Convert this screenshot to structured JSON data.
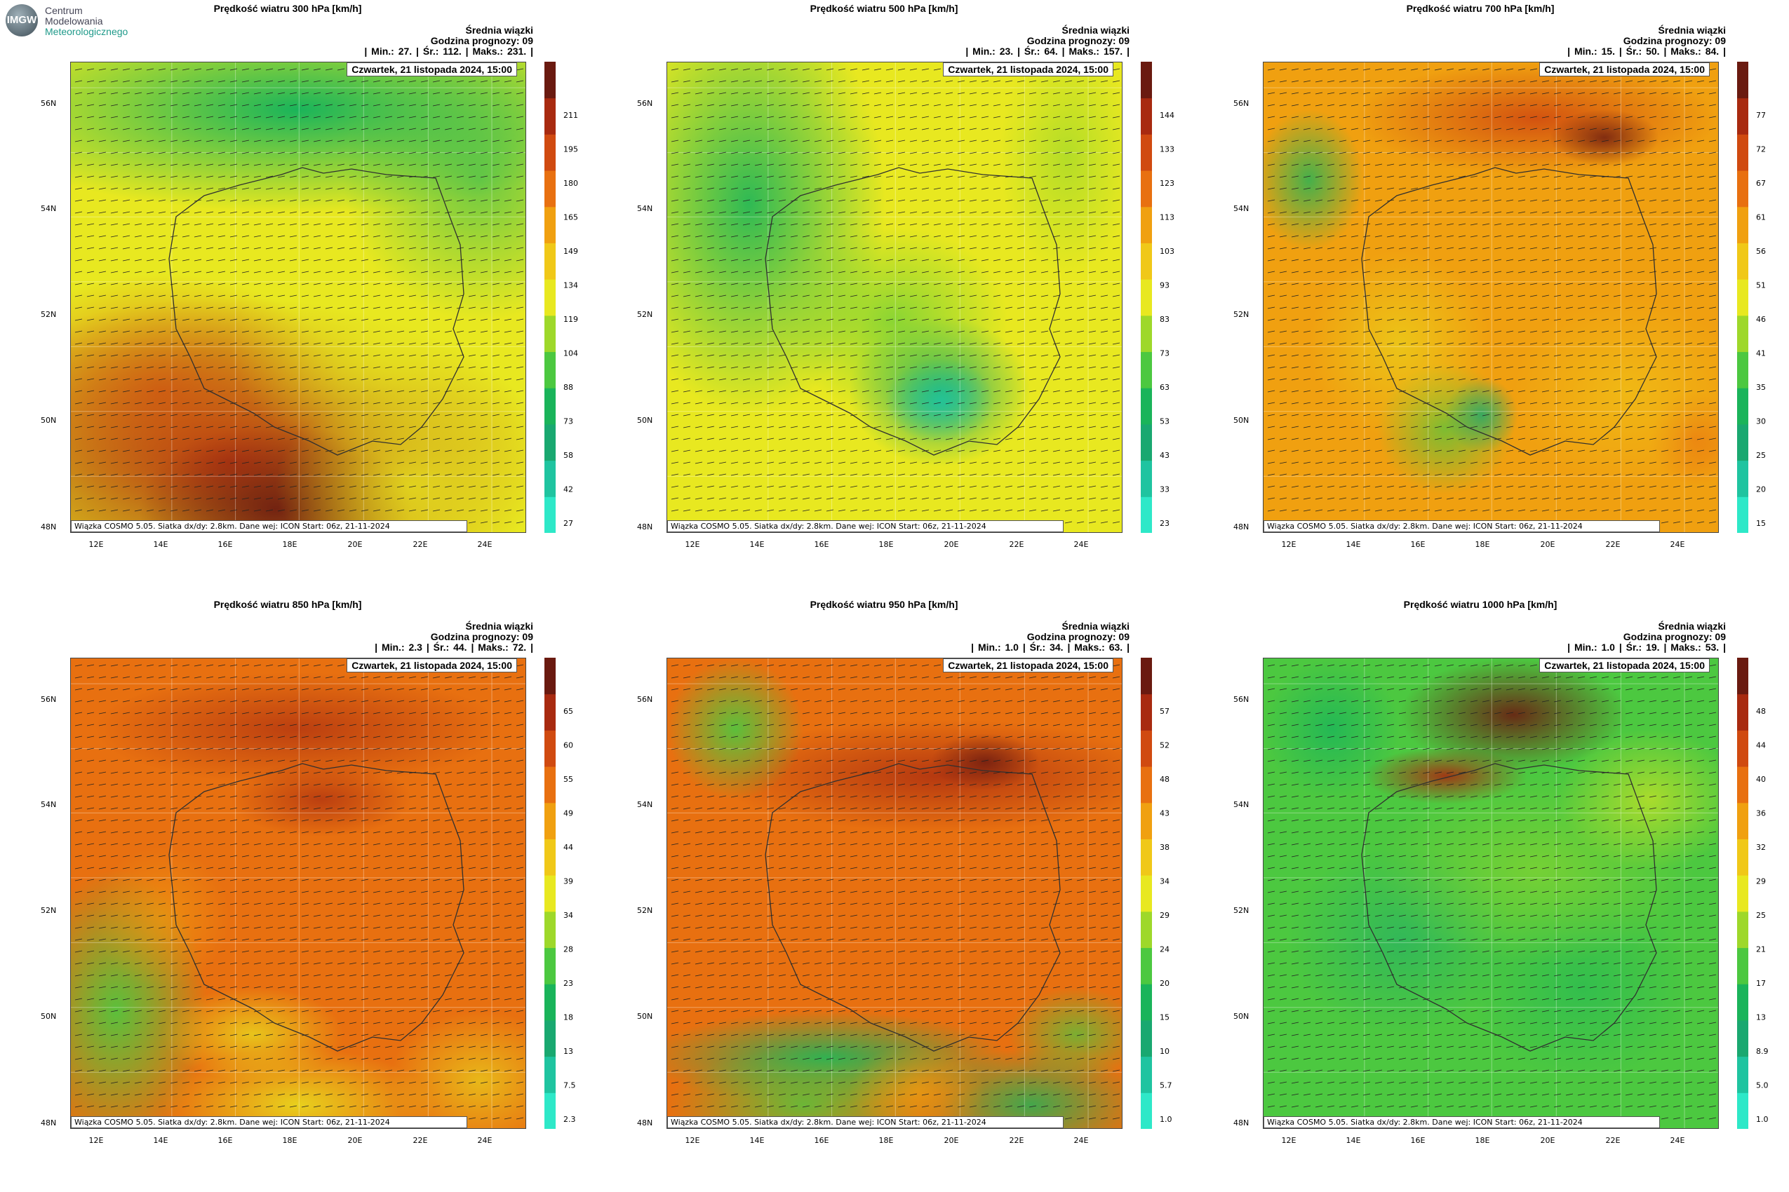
{
  "logo": {
    "badge": "IMGW",
    "line1": "Centrum",
    "line2": "Modelowania",
    "line3": "Meteorologicznego"
  },
  "common": {
    "header_title": "Średnia wiązki",
    "forecast_hour": "Godzina prognozy: 09",
    "date": "Czwartek, 21 listopada 2024, 15:00",
    "footer": "Wiązka  COSMO 5.05. Siatka dx/dy: 2.8km. Dane wej: ICON Start: 06z, 21-11-2024",
    "lat_labels": [
      "56N",
      "54N",
      "52N",
      "50N",
      "48N"
    ],
    "lon_labels": [
      "12E",
      "14E",
      "16E",
      "18E",
      "20E",
      "22E",
      "24E"
    ]
  },
  "panels": [
    {
      "title": "Prędkość wiatru 300 hPa [km/h]",
      "stats": "| Min.:    27. | Śr.:    112. | Maks.:    231. |",
      "colorbar": [
        "211",
        "195",
        "180",
        "165",
        "149",
        "134",
        "119",
        "104",
        "88",
        "73",
        "58",
        "42",
        "27"
      ],
      "scheme": "p300"
    },
    {
      "title": "Prędkość wiatru 500 hPa [km/h]",
      "stats": "| Min.:    23. | Śr.:    64. | Maks.:    157. |",
      "colorbar": [
        "144",
        "133",
        "123",
        "113",
        "103",
        "93",
        "83",
        "73",
        "63",
        "53",
        "43",
        "33",
        "23"
      ],
      "scheme": "p500"
    },
    {
      "title": "Prędkość wiatru 700 hPa [km/h]",
      "stats": "| Min.:    15. | Śr.:    50. | Maks.:    84. |",
      "colorbar": [
        "77",
        "72",
        "67",
        "61",
        "56",
        "51",
        "46",
        "41",
        "35",
        "30",
        "25",
        "20",
        "15"
      ],
      "scheme": "p700"
    },
    {
      "title": "Prędkość wiatru 850 hPa [km/h]",
      "stats": "| Min.:    2.3 | Śr.:    44. | Maks.:    72. |",
      "colorbar": [
        "65",
        "60",
        "55",
        "49",
        "44",
        "39",
        "34",
        "28",
        "23",
        "18",
        "13",
        "7.5",
        "2.3"
      ],
      "scheme": "p850"
    },
    {
      "title": "Prędkość wiatru 950 hPa [km/h]",
      "stats": "| Min.:    1.0 | Śr.:    34. | Maks.:    63. |",
      "colorbar": [
        "57",
        "52",
        "48",
        "43",
        "38",
        "34",
        "29",
        "24",
        "20",
        "15",
        "10",
        "5.7",
        "1.0"
      ],
      "scheme": "p950"
    },
    {
      "title": "Prędkość wiatru 1000 hPa [km/h]",
      "stats": "| Min.:    1.0 | Śr.:    19. | Maks.:    53. |",
      "colorbar": [
        "48",
        "44",
        "40",
        "36",
        "32",
        "29",
        "25",
        "21",
        "17",
        "13",
        "8.9",
        "5.0",
        "1.0"
      ],
      "scheme": "p1000"
    }
  ],
  "colors": {
    "scale": [
      "#2ee8c8",
      "#1fc4a0",
      "#19a870",
      "#1ab45a",
      "#4cc840",
      "#9ed82a",
      "#e8e820",
      "#f0c818",
      "#f0a010",
      "#e87010",
      "#d04a10",
      "#a82a10",
      "#6a1a10"
    ],
    "border": "#303030"
  }
}
